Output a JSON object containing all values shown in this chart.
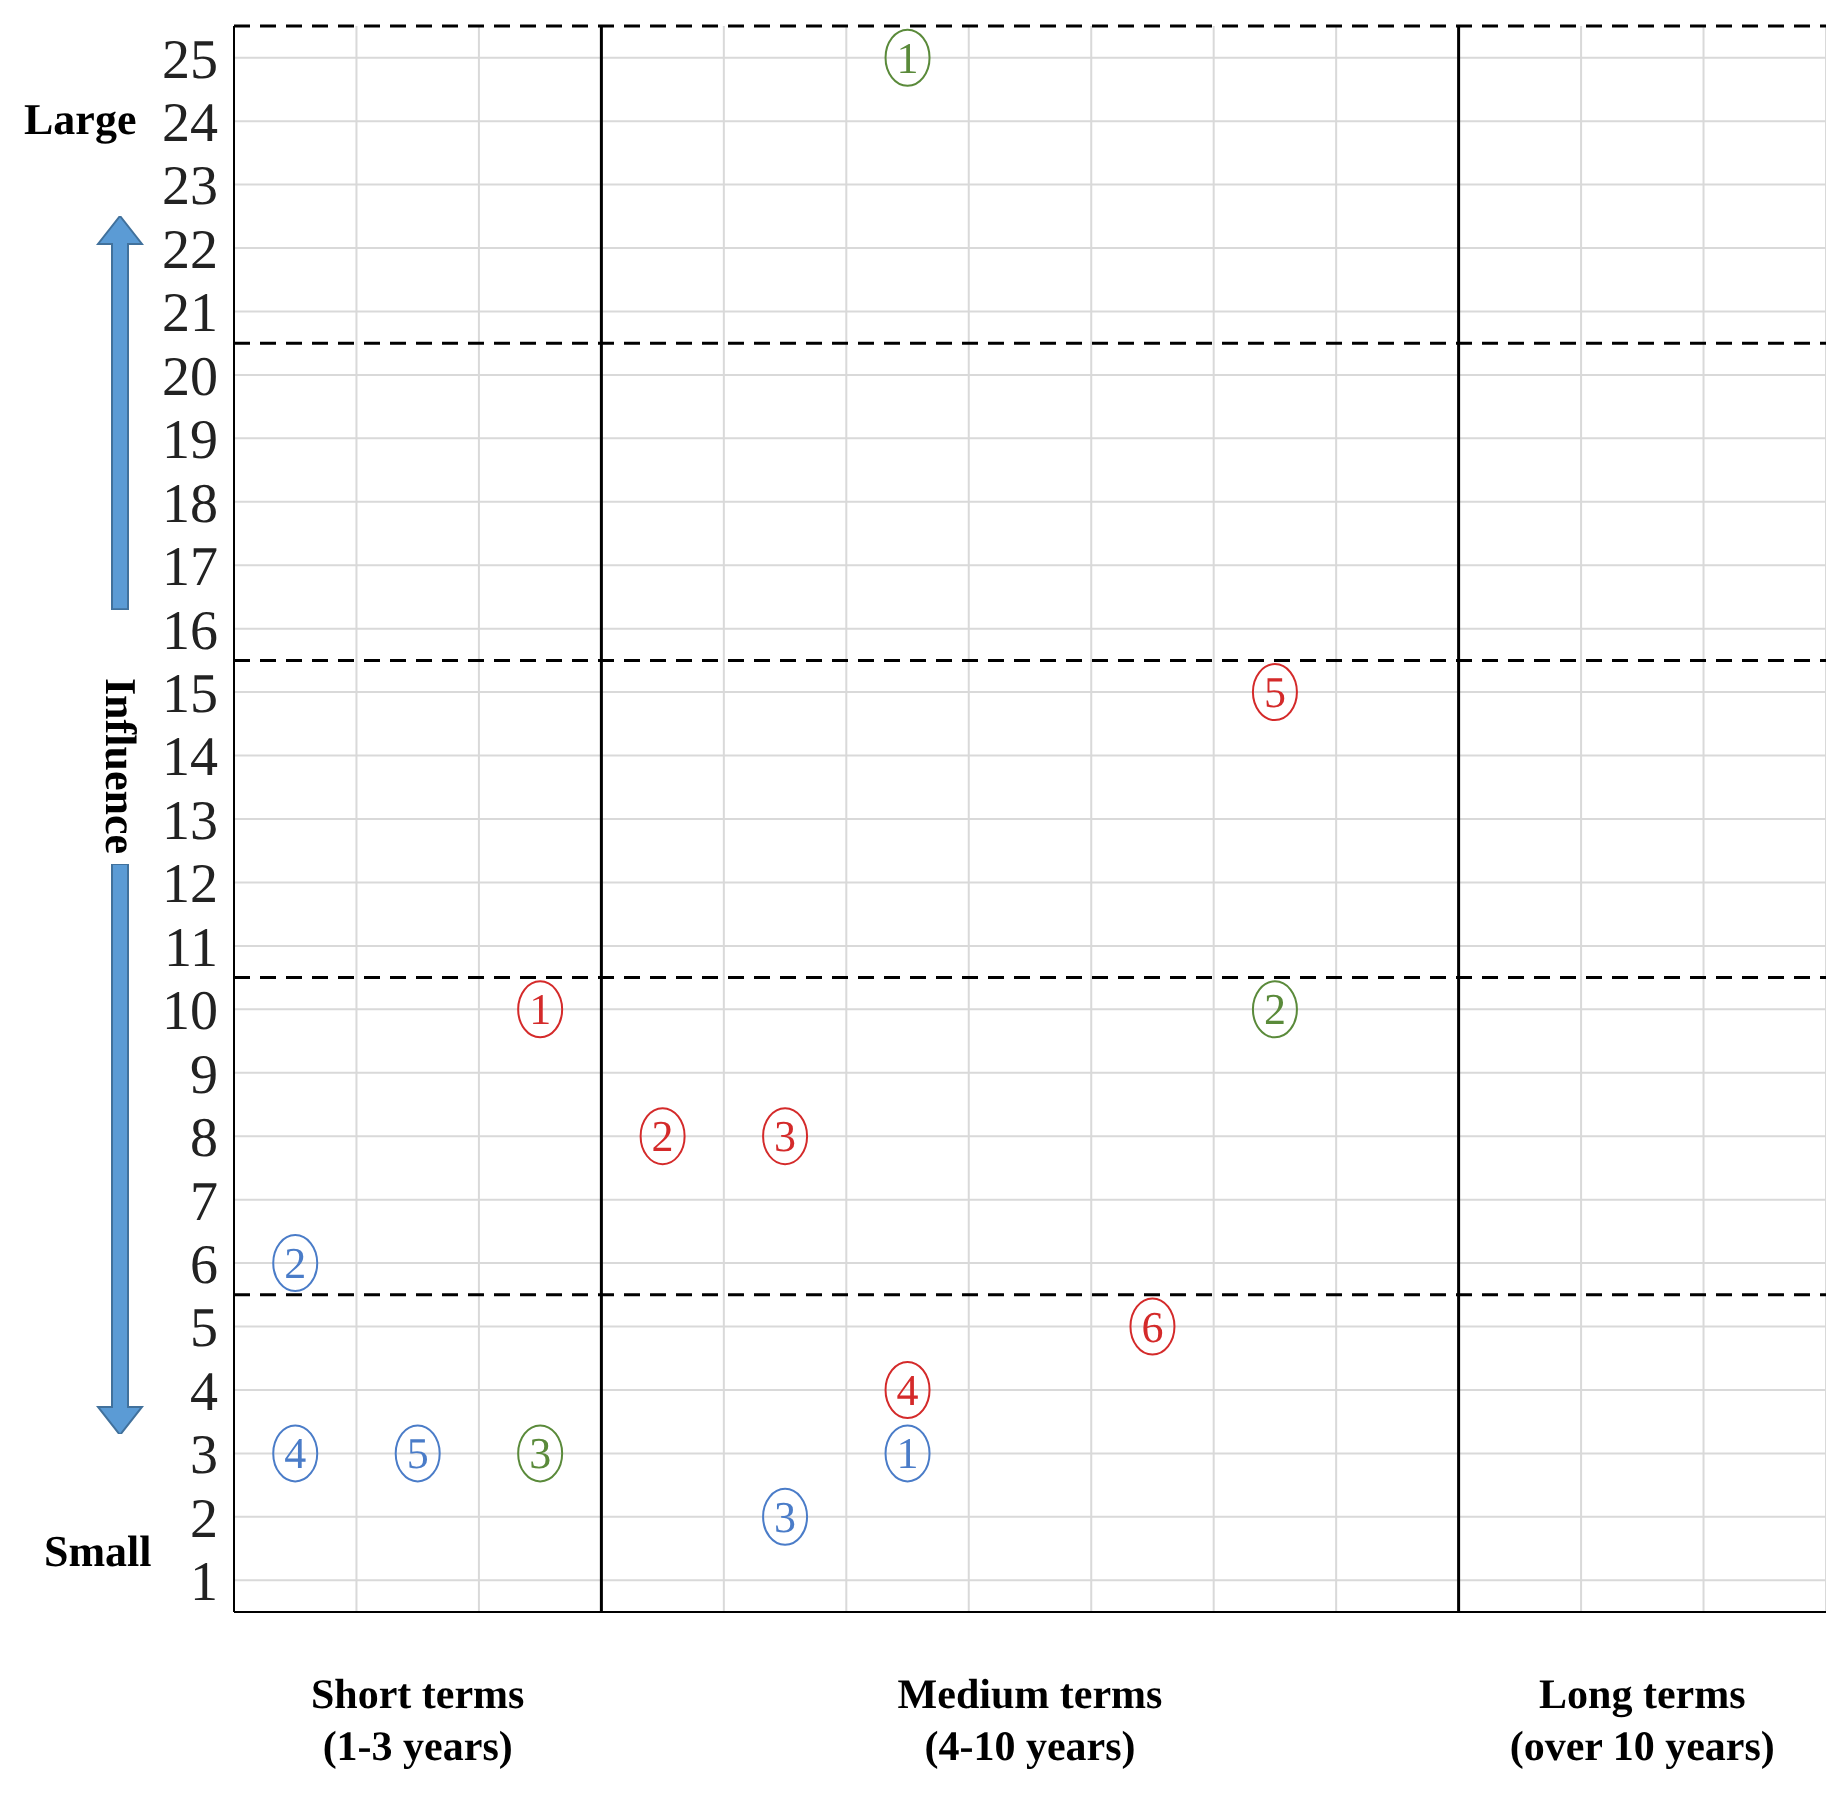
{
  "chart_data": {
    "type": "scatter",
    "ylabel": "Influence",
    "categories": [
      null,
      "Short terms\n(1-3 years)",
      null,
      null,
      null,
      null,
      "Medium terms\n(4-10 years)",
      null,
      null,
      null,
      null,
      "Long terms\n(over 10 years)",
      null
    ],
    "ylim": [
      0.5,
      25.5
    ],
    "yticks": [
      1,
      2,
      3,
      4,
      5,
      6,
      7,
      8,
      9,
      10,
      11,
      12,
      13,
      14,
      15,
      16,
      17,
      18,
      19,
      20,
      21,
      22,
      23,
      24,
      25
    ],
    "grid": true,
    "marker": "circle",
    "series": [
      {
        "name": "1",
        "color": "#d42a2a",
        "values": [
          null,
          null,
          10,
          null,
          null,
          null,
          null,
          null,
          null,
          null,
          null,
          null,
          null
        ]
      },
      {
        "name": "2",
        "color": "#d42a2a",
        "values": [
          null,
          null,
          null,
          8,
          null,
          null,
          null,
          null,
          null,
          null,
          null,
          null,
          null
        ]
      },
      {
        "name": "3",
        "color": "#d42a2a",
        "values": [
          null,
          null,
          null,
          null,
          8,
          null,
          null,
          null,
          null,
          null,
          null,
          null,
          null
        ]
      },
      {
        "name": "4",
        "color": "#d42a2a",
        "values": [
          null,
          null,
          null,
          null,
          null,
          4,
          null,
          null,
          null,
          null,
          null,
          null,
          null
        ]
      },
      {
        "name": "5",
        "color": "#d42a2a",
        "values": [
          null,
          null,
          null,
          null,
          null,
          null,
          null,
          null,
          15,
          null,
          null,
          null,
          null
        ]
      },
      {
        "name": "6",
        "color": "#d42a2a",
        "values": [
          null,
          null,
          null,
          null,
          null,
          null,
          null,
          5,
          null,
          null,
          null,
          null,
          null
        ]
      },
      {
        "name": "1",
        "color": "#5a8a3a",
        "values": [
          null,
          null,
          null,
          null,
          null,
          25,
          null,
          null,
          null,
          null,
          null,
          null,
          null
        ]
      },
      {
        "name": "2",
        "color": "#5a8a3a",
        "values": [
          null,
          null,
          null,
          null,
          null,
          null,
          null,
          null,
          10,
          null,
          null,
          null,
          null
        ]
      },
      {
        "name": "3",
        "color": "#5a8a3a",
        "values": [
          null,
          null,
          3,
          null,
          null,
          null,
          null,
          null,
          null,
          null,
          null,
          null,
          null
        ]
      },
      {
        "name": "1",
        "color": "#4a7cc8",
        "values": [
          null,
          null,
          null,
          null,
          null,
          3,
          null,
          null,
          null,
          null,
          null,
          null,
          null
        ]
      },
      {
        "name": "2",
        "color": "#4a7cc8",
        "values": [
          6,
          null,
          null,
          null,
          null,
          null,
          null,
          null,
          null,
          null,
          null,
          null,
          null
        ]
      },
      {
        "name": "3",
        "color": "#4a7cc8",
        "values": [
          null,
          null,
          null,
          null,
          2,
          null,
          null,
          null,
          null,
          null,
          null,
          null,
          null
        ]
      },
      {
        "name": "4",
        "color": "#4a7cc8",
        "values": [
          3,
          null,
          null,
          null,
          null,
          null,
          null,
          null,
          null,
          null,
          null,
          null,
          null
        ]
      },
      {
        "name": "5",
        "color": "#4a7cc8",
        "values": [
          null,
          3,
          null,
          null,
          null,
          null,
          null,
          null,
          null,
          null,
          null,
          null,
          null
        ]
      }
    ],
    "ref_lines": [
      {
        "axis": "y",
        "value": 5.5,
        "color": "#000000",
        "line_style": "dashed"
      },
      {
        "axis": "y",
        "value": 10.5,
        "color": "#000000",
        "line_style": "dashed"
      },
      {
        "axis": "y",
        "value": 15.5,
        "color": "#000000",
        "line_style": "dashed"
      },
      {
        "axis": "y",
        "value": 20.5,
        "color": "#000000",
        "line_style": "dashed"
      },
      {
        "axis": "y",
        "value": 25.5,
        "color": "#000000",
        "line_style": "dashed"
      }
    ],
    "annotations": [
      "Large",
      "Small"
    ]
  }
}
